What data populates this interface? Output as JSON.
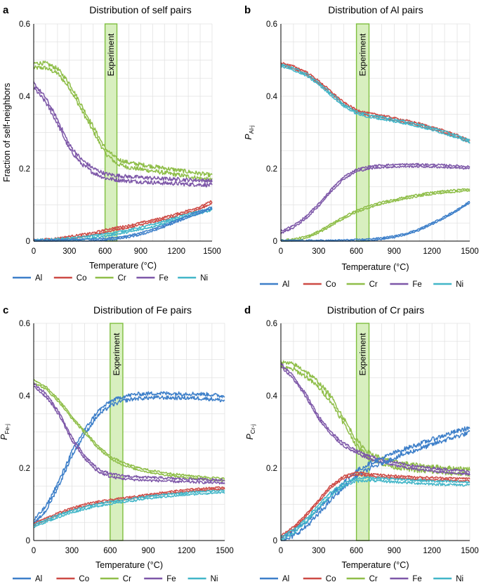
{
  "colors": {
    "Al": "#3d7fc9",
    "Co": "#cd4a45",
    "Cr": "#8fbe49",
    "Fe": "#7d57a8",
    "Ni": "#42b6c8",
    "experiment_fill": "#d8efbf",
    "experiment_stroke": "#7fbf3f",
    "grid": "#e2e2e2"
  },
  "chart_data": [
    {
      "panel": "a",
      "type": "line",
      "title": "Distribution of self pairs",
      "xlabel": "Temperature (°C)",
      "ylabel": "Fraction of self-neighbors",
      "ylabel_main": "",
      "ylabel_sub": "",
      "xlim": [
        0,
        1500
      ],
      "ylim": [
        0,
        0.6
      ],
      "xticks": [
        "0",
        "300",
        "600",
        "900",
        "1200",
        "1500"
      ],
      "yticks": [
        "0",
        "0.2",
        "0.4",
        "0.6"
      ],
      "experiment": {
        "label": "Experiment",
        "x_range": [
          600,
          700
        ]
      },
      "legend": [
        "Al",
        "Co",
        "Cr",
        "Fe",
        "Ni"
      ],
      "series": [
        {
          "name": "Cr",
          "x": [
            0,
            100,
            200,
            300,
            400,
            500,
            600,
            700,
            800,
            900,
            1000,
            1100,
            1200,
            1300,
            1400,
            1500
          ],
          "y": [
            0.485,
            0.485,
            0.47,
            0.43,
            0.37,
            0.31,
            0.25,
            0.22,
            0.21,
            0.205,
            0.2,
            0.195,
            0.19,
            0.185,
            0.18,
            0.175
          ],
          "band": 0.013
        },
        {
          "name": "Fe",
          "x": [
            0,
            100,
            200,
            300,
            400,
            500,
            600,
            700,
            800,
            900,
            1000,
            1100,
            1200,
            1300,
            1400,
            1500
          ],
          "y": [
            0.43,
            0.39,
            0.33,
            0.26,
            0.22,
            0.195,
            0.18,
            0.175,
            0.172,
            0.17,
            0.168,
            0.166,
            0.165,
            0.163,
            0.162,
            0.16
          ],
          "band": 0.012
        },
        {
          "name": "Co",
          "x": [
            0,
            100,
            200,
            300,
            400,
            500,
            600,
            700,
            800,
            900,
            1000,
            1100,
            1200,
            1300,
            1400,
            1500
          ],
          "y": [
            0.0,
            0.002,
            0.005,
            0.01,
            0.015,
            0.02,
            0.028,
            0.035,
            0.04,
            0.048,
            0.055,
            0.063,
            0.072,
            0.082,
            0.092,
            0.108
          ],
          "band": 0.006
        },
        {
          "name": "Ni",
          "x": [
            0,
            100,
            200,
            300,
            400,
            500,
            600,
            700,
            800,
            900,
            1000,
            1100,
            1200,
            1300,
            1400,
            1500
          ],
          "y": [
            0.0,
            0.001,
            0.003,
            0.005,
            0.008,
            0.012,
            0.017,
            0.022,
            0.028,
            0.035,
            0.043,
            0.052,
            0.062,
            0.072,
            0.08,
            0.088
          ],
          "band": 0.006
        },
        {
          "name": "Al",
          "x": [
            0,
            100,
            200,
            300,
            400,
            500,
            600,
            700,
            800,
            900,
            1000,
            1100,
            1200,
            1300,
            1400,
            1500
          ],
          "y": [
            0.0,
            0.0,
            0.0,
            0.001,
            0.002,
            0.003,
            0.005,
            0.008,
            0.013,
            0.02,
            0.03,
            0.042,
            0.055,
            0.068,
            0.08,
            0.092
          ],
          "band": 0.005
        }
      ]
    },
    {
      "panel": "b",
      "type": "line",
      "title": "Distribution of Al pairs",
      "xlabel": "Temperature (°C)",
      "ylabel": "",
      "ylabel_main": "P",
      "ylabel_sub": "Al-j",
      "xlim": [
        0,
        1500
      ],
      "ylim": [
        0,
        0.6
      ],
      "xticks": [
        "0",
        "300",
        "600",
        "900",
        "1200",
        "1500"
      ],
      "yticks": [
        "0",
        "0.2",
        "0.4",
        "0.6"
      ],
      "experiment": {
        "label": "Experiment",
        "x_range": [
          600,
          700
        ]
      },
      "legend": [
        "Al",
        "Co",
        "Cr",
        "Fe",
        "Ni"
      ],
      "series": [
        {
          "name": "Co",
          "x": [
            0,
            100,
            200,
            300,
            400,
            500,
            600,
            700,
            800,
            900,
            1000,
            1100,
            1200,
            1300,
            1400,
            1500
          ],
          "y": [
            0.49,
            0.48,
            0.465,
            0.44,
            0.41,
            0.38,
            0.36,
            0.35,
            0.345,
            0.337,
            0.33,
            0.322,
            0.312,
            0.302,
            0.29,
            0.275
          ],
          "band": 0.006
        },
        {
          "name": "Ni",
          "x": [
            0,
            100,
            200,
            300,
            400,
            500,
            600,
            700,
            800,
            900,
            1000,
            1100,
            1200,
            1300,
            1400,
            1500
          ],
          "y": [
            0.485,
            0.475,
            0.46,
            0.435,
            0.405,
            0.375,
            0.355,
            0.345,
            0.34,
            0.333,
            0.327,
            0.319,
            0.31,
            0.3,
            0.288,
            0.275
          ],
          "band": 0.006
        },
        {
          "name": "Fe",
          "x": [
            0,
            100,
            200,
            300,
            400,
            500,
            600,
            700,
            800,
            900,
            1000,
            1100,
            1200,
            1300,
            1400,
            1500
          ],
          "y": [
            0.025,
            0.04,
            0.065,
            0.1,
            0.14,
            0.175,
            0.195,
            0.203,
            0.207,
            0.208,
            0.209,
            0.209,
            0.208,
            0.207,
            0.205,
            0.203
          ],
          "band": 0.006
        },
        {
          "name": "Cr",
          "x": [
            0,
            100,
            200,
            300,
            400,
            500,
            600,
            700,
            800,
            900,
            1000,
            1100,
            1200,
            1300,
            1400,
            1500
          ],
          "y": [
            0.0,
            0.003,
            0.01,
            0.025,
            0.045,
            0.065,
            0.082,
            0.095,
            0.105,
            0.113,
            0.12,
            0.127,
            0.132,
            0.136,
            0.139,
            0.142
          ],
          "band": 0.005
        },
        {
          "name": "Al",
          "x": [
            0,
            100,
            200,
            300,
            400,
            500,
            600,
            700,
            800,
            900,
            1000,
            1100,
            1200,
            1300,
            1400,
            1500
          ],
          "y": [
            0.0,
            0.0,
            0.0,
            0.0,
            0.0,
            0.001,
            0.002,
            0.004,
            0.007,
            0.012,
            0.02,
            0.032,
            0.048,
            0.066,
            0.085,
            0.108
          ],
          "band": 0.004
        }
      ]
    },
    {
      "panel": "c",
      "type": "line",
      "title": "Distribution of Fe pairs",
      "xlabel": "Temperature (°C)",
      "ylabel": "",
      "ylabel_main": "P",
      "ylabel_sub": "Fe-j",
      "xlim": [
        0,
        1500
      ],
      "ylim": [
        0,
        0.6
      ],
      "xticks": [
        "0",
        "300",
        "600",
        "900",
        "1200",
        "1500"
      ],
      "yticks": [
        "0",
        "0.2",
        "0.4",
        "0.6"
      ],
      "experiment": {
        "label": "Experiment",
        "x_range": [
          600,
          700
        ]
      },
      "legend": [
        "Al",
        "Co",
        "Cr",
        "Fe",
        "Ni"
      ],
      "series": [
        {
          "name": "Al",
          "x": [
            0,
            100,
            200,
            300,
            400,
            500,
            600,
            700,
            800,
            900,
            1000,
            1100,
            1200,
            1300,
            1400,
            1500
          ],
          "y": [
            0.05,
            0.09,
            0.16,
            0.24,
            0.3,
            0.35,
            0.378,
            0.392,
            0.398,
            0.4,
            0.401,
            0.4,
            0.4,
            0.399,
            0.397,
            0.392
          ],
          "band": 0.012
        },
        {
          "name": "Cr",
          "x": [
            0,
            100,
            200,
            300,
            400,
            500,
            600,
            700,
            800,
            900,
            1000,
            1100,
            1200,
            1300,
            1400,
            1500
          ],
          "y": [
            0.44,
            0.42,
            0.385,
            0.34,
            0.3,
            0.26,
            0.23,
            0.212,
            0.2,
            0.192,
            0.186,
            0.181,
            0.177,
            0.174,
            0.171,
            0.168
          ],
          "band": 0.006
        },
        {
          "name": "Fe",
          "x": [
            0,
            100,
            200,
            300,
            400,
            500,
            600,
            700,
            800,
            900,
            1000,
            1100,
            1200,
            1300,
            1400,
            1500
          ],
          "y": [
            0.43,
            0.4,
            0.35,
            0.28,
            0.23,
            0.195,
            0.18,
            0.175,
            0.172,
            0.17,
            0.169,
            0.167,
            0.166,
            0.165,
            0.164,
            0.163
          ],
          "band": 0.008
        },
        {
          "name": "Co",
          "x": [
            0,
            100,
            200,
            300,
            400,
            500,
            600,
            700,
            800,
            900,
            1000,
            1100,
            1200,
            1300,
            1400,
            1500
          ],
          "y": [
            0.045,
            0.06,
            0.075,
            0.088,
            0.098,
            0.105,
            0.11,
            0.115,
            0.12,
            0.125,
            0.13,
            0.134,
            0.138,
            0.141,
            0.143,
            0.145
          ],
          "band": 0.005
        },
        {
          "name": "Ni",
          "x": [
            0,
            100,
            200,
            300,
            400,
            500,
            600,
            700,
            800,
            900,
            1000,
            1100,
            1200,
            1300,
            1400,
            1500
          ],
          "y": [
            0.04,
            0.055,
            0.068,
            0.08,
            0.09,
            0.098,
            0.104,
            0.109,
            0.114,
            0.119,
            0.123,
            0.126,
            0.129,
            0.132,
            0.134,
            0.136
          ],
          "band": 0.006
        }
      ]
    },
    {
      "panel": "d",
      "type": "line",
      "title": "Distribution of Cr pairs",
      "xlabel": "Temperature (°C)",
      "ylabel": "",
      "ylabel_main": "P",
      "ylabel_sub": "Cr-j",
      "xlim": [
        0,
        1500
      ],
      "ylim": [
        0,
        0.6
      ],
      "xticks": [
        "0",
        "300",
        "600",
        "900",
        "1200",
        "1500"
      ],
      "yticks": [
        "0",
        "0.2",
        "0.4",
        "0.6"
      ],
      "experiment": {
        "label": "Experiment",
        "x_range": [
          600,
          700
        ]
      },
      "legend": [
        "Al",
        "Co",
        "Cr",
        "Fe",
        "Ni"
      ],
      "series": [
        {
          "name": "Cr",
          "x": [
            0,
            100,
            200,
            300,
            400,
            500,
            600,
            700,
            800,
            900,
            1000,
            1100,
            1200,
            1300,
            1400,
            1500
          ],
          "y": [
            0.485,
            0.48,
            0.46,
            0.43,
            0.39,
            0.33,
            0.27,
            0.235,
            0.22,
            0.21,
            0.205,
            0.2,
            0.197,
            0.194,
            0.192,
            0.19
          ],
          "band": 0.014
        },
        {
          "name": "Fe",
          "x": [
            0,
            100,
            200,
            300,
            400,
            500,
            600,
            700,
            800,
            900,
            1000,
            1100,
            1200,
            1300,
            1400,
            1500
          ],
          "y": [
            0.485,
            0.45,
            0.4,
            0.34,
            0.295,
            0.265,
            0.245,
            0.23,
            0.22,
            0.212,
            0.205,
            0.2,
            0.196,
            0.193,
            0.19,
            0.187
          ],
          "band": 0.008
        },
        {
          "name": "Al",
          "x": [
            0,
            100,
            200,
            300,
            400,
            500,
            600,
            700,
            800,
            900,
            1000,
            1100,
            1200,
            1300,
            1400,
            1500
          ],
          "y": [
            0.0,
            0.02,
            0.045,
            0.08,
            0.12,
            0.155,
            0.185,
            0.205,
            0.22,
            0.235,
            0.248,
            0.26,
            0.272,
            0.284,
            0.295,
            0.305
          ],
          "band": 0.014
        },
        {
          "name": "Co",
          "x": [
            0,
            100,
            200,
            300,
            400,
            500,
            600,
            700,
            800,
            900,
            1000,
            1100,
            1200,
            1300,
            1400,
            1500
          ],
          "y": [
            0.01,
            0.035,
            0.07,
            0.11,
            0.15,
            0.175,
            0.185,
            0.182,
            0.178,
            0.176,
            0.174,
            0.172,
            0.171,
            0.17,
            0.169,
            0.168
          ],
          "band": 0.006
        },
        {
          "name": "Ni",
          "x": [
            0,
            100,
            200,
            300,
            400,
            500,
            600,
            700,
            800,
            900,
            1000,
            1100,
            1200,
            1300,
            1400,
            1500
          ],
          "y": [
            0.005,
            0.025,
            0.055,
            0.095,
            0.13,
            0.155,
            0.168,
            0.17,
            0.168,
            0.166,
            0.164,
            0.162,
            0.16,
            0.159,
            0.158,
            0.157
          ],
          "band": 0.008
        }
      ]
    }
  ]
}
